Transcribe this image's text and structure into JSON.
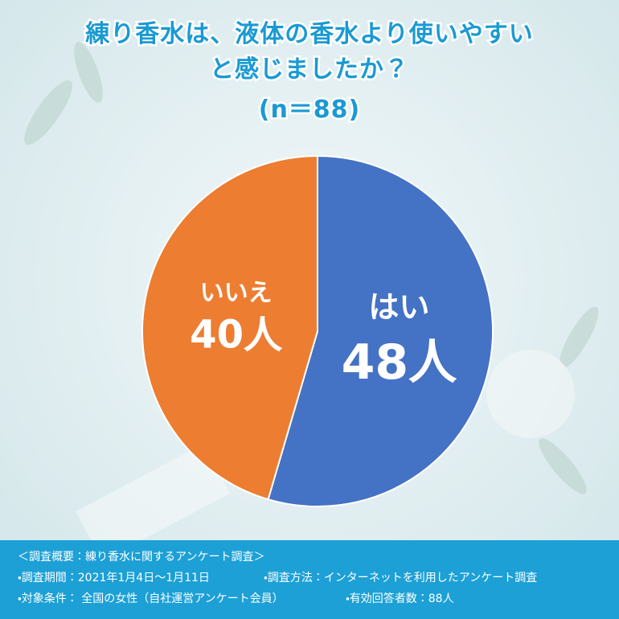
{
  "chart_data": {
    "type": "pie",
    "title": [
      "練り香水は、液体の香水より使いやすい",
      "と感じましたか？"
    ],
    "subtitle": "(n＝88)",
    "categories": [
      "はい",
      "いいえ"
    ],
    "values": [
      48,
      40
    ],
    "value_labels": [
      "48人",
      "40人"
    ],
    "colors": [
      "#4472c4",
      "#ed7d31"
    ],
    "start_angle": 0,
    "direction": "clockwise"
  },
  "footnotes": [
    "＜調査概要：練り香水に関するアンケート調査＞",
    "・調査期間：2021年1月4日〜1月11日",
    "・調査方法：インターネットを利用したアンケート調査",
    "・対象条件： 全国の女性（自社運営アンケート会員）",
    "・有効回答者数：88人"
  ]
}
